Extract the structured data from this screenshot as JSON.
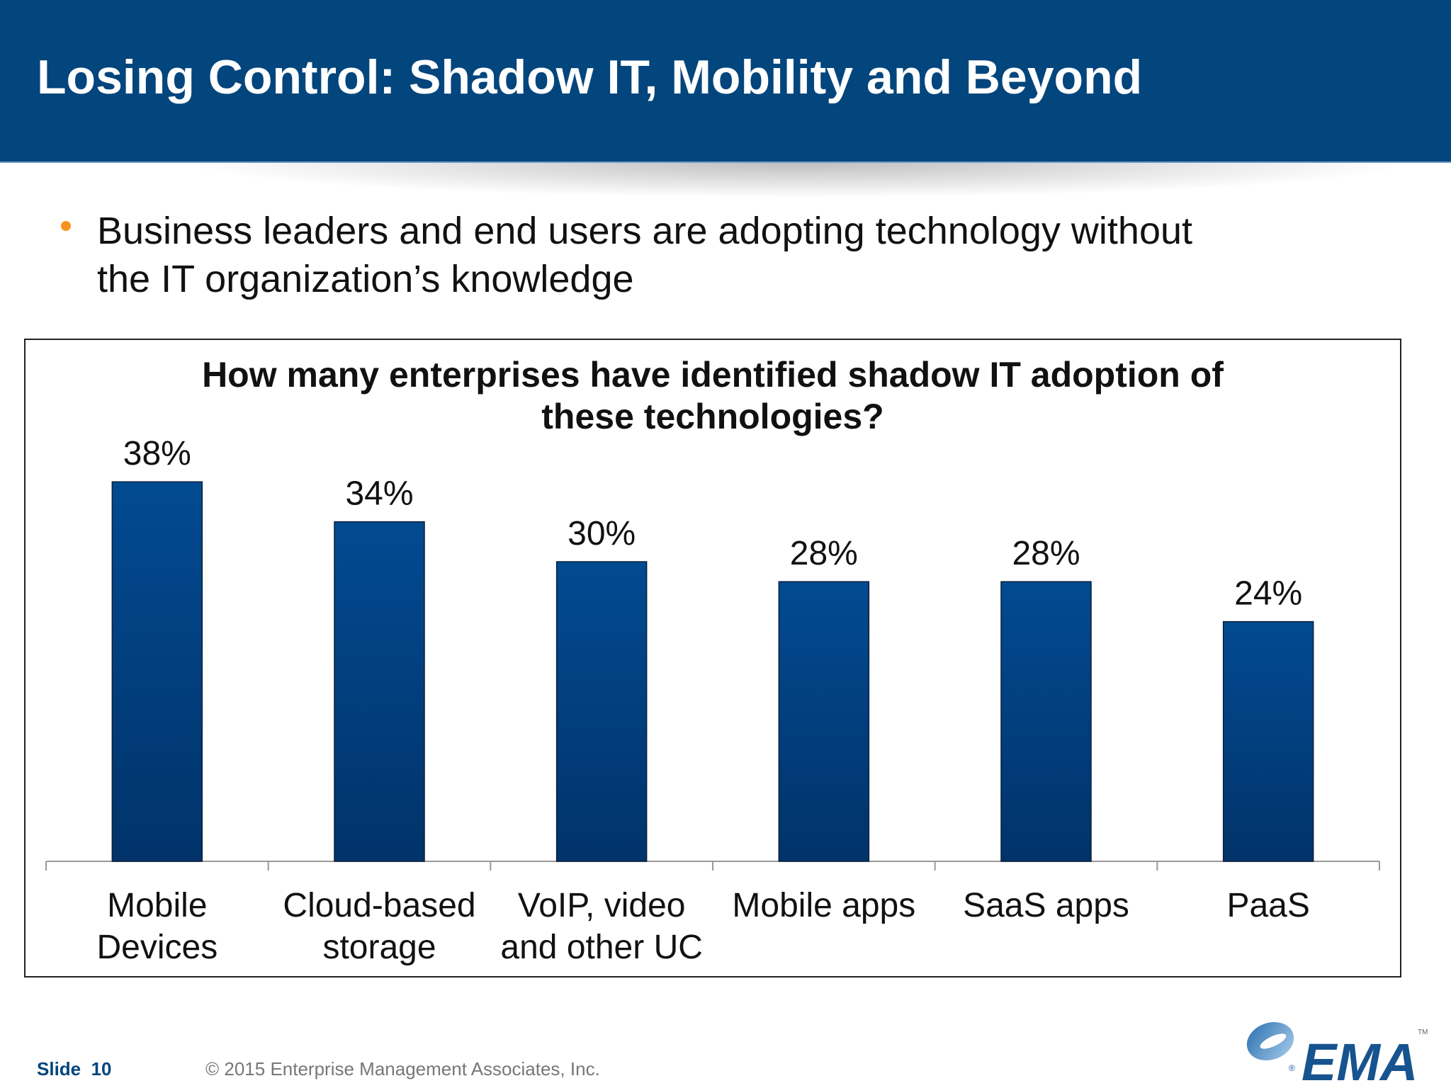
{
  "header": {
    "title": "Losing Control: Shadow IT, Mobility and Beyond"
  },
  "bullets": [
    {
      "line1": "Business leaders and end users are adopting technology without",
      "line2": "the IT organization’s knowledge"
    }
  ],
  "chart_data": {
    "type": "bar",
    "title_lines": [
      "How many enterprises have identified shadow IT adoption of",
      "these technologies?"
    ],
    "categories": [
      [
        "Mobile",
        "Devices"
      ],
      [
        "Cloud-based",
        "storage"
      ],
      [
        "VoIP, video",
        "and other UC"
      ],
      [
        "Mobile apps"
      ],
      [
        "SaaS apps"
      ],
      [
        "PaaS"
      ]
    ],
    "values": [
      38,
      34,
      30,
      28,
      28,
      24
    ],
    "data_labels": [
      "38%",
      "34%",
      "30%",
      "28%",
      "28%",
      "24%"
    ],
    "unit": "%",
    "grid": false,
    "legend": "none",
    "bar_color": "#024688"
  },
  "footer": {
    "slide_label": "Slide",
    "slide_number": "10",
    "copyright": "© 2015 Enterprise Management Associates, Inc."
  },
  "logo": {
    "text": "EMA",
    "tm": "TM",
    "registered": "®"
  },
  "colors": {
    "header": "#03457d",
    "bullet": "#f7941d",
    "bar_top": "#024a91",
    "bar_bottom": "#01336a"
  }
}
